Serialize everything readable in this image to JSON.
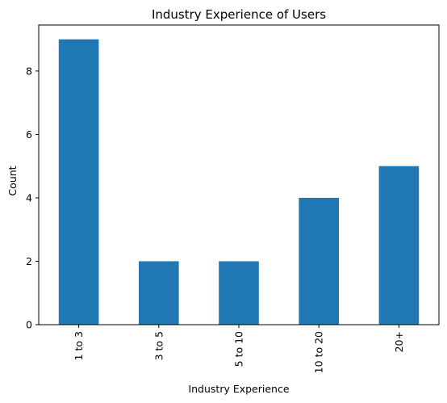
{
  "chart_data": {
    "type": "bar",
    "title": "Industry Experience of Users",
    "xlabel": "Industry Experience",
    "ylabel": "Count",
    "categories": [
      "1 to 3",
      "3 to 5",
      "5 to 10",
      "10 to 20",
      "20+"
    ],
    "values": [
      9,
      2,
      2,
      4,
      5
    ],
    "ylim": [
      0,
      9.45
    ],
    "yticks": [
      0,
      2,
      4,
      6,
      8
    ],
    "bar_color": "#1f77b4",
    "grid": false,
    "legend": "none"
  }
}
